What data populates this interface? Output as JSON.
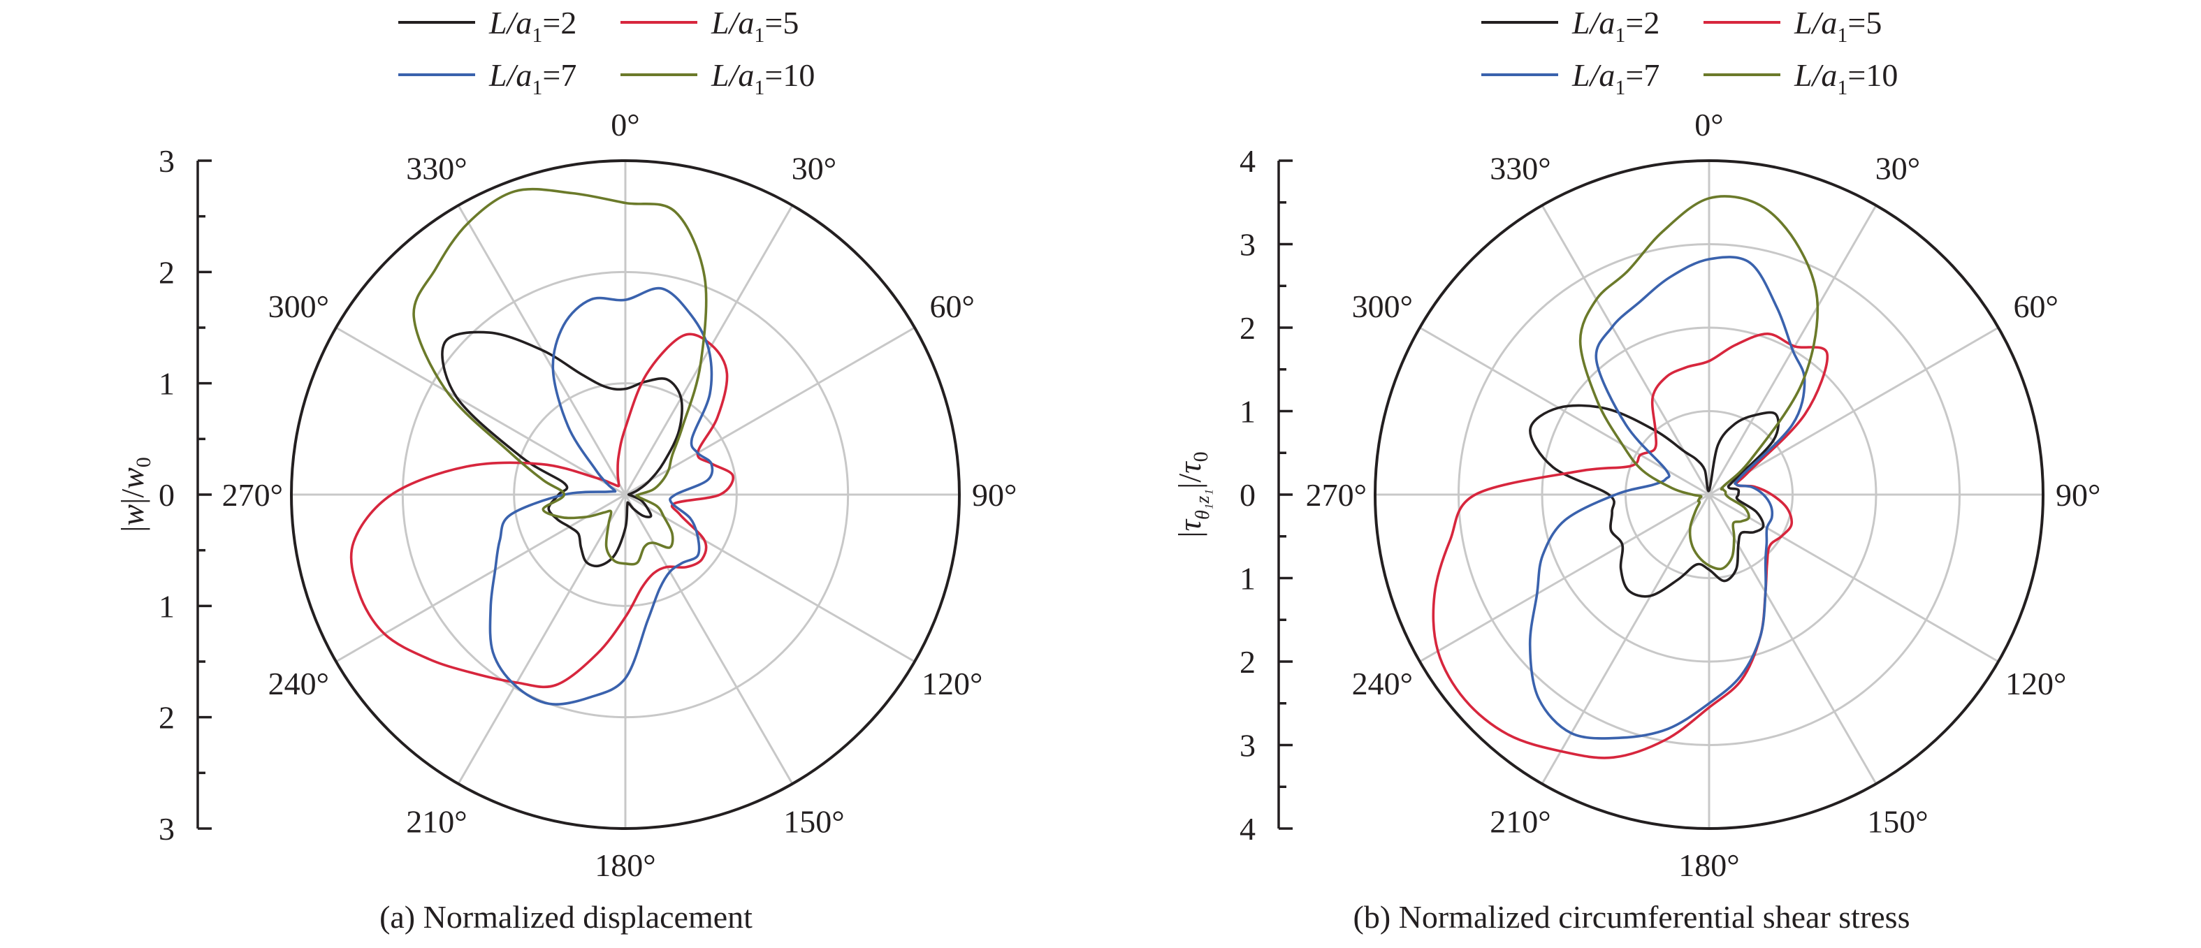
{
  "colors": {
    "L2": "#231f20",
    "L5": "#d7263d",
    "L7": "#3a62ad",
    "L10": "#6b7a2a"
  },
  "chart_data": [
    {
      "type": "polar-line",
      "caption": "(a) Normalized displacement",
      "ylabel": "|w|/w0",
      "rlim": [
        0,
        3
      ],
      "r_ticks": [
        "3",
        "2",
        "1",
        "0",
        "1",
        "2",
        "3"
      ],
      "angle_labels": [
        "0°",
        "30°",
        "60°",
        "90°",
        "120°",
        "150°",
        "180°",
        "210°",
        "240°",
        "270°",
        "300°",
        "330°"
      ],
      "legend": [
        "L/a1=2",
        "L/a1=5",
        "L/a1=7",
        "L/a1=10"
      ],
      "grid": true,
      "series": [
        {
          "name": "L/a1=2",
          "key": "L2",
          "theta": [
            0,
            10,
            20,
            30,
            40,
            50,
            60,
            70,
            80,
            90,
            100,
            110,
            120,
            130,
            140,
            150,
            160,
            170,
            180,
            190,
            200,
            210,
            220,
            230,
            240,
            250,
            260,
            270,
            280,
            290,
            300,
            310,
            320,
            330,
            340,
            350,
            360
          ],
          "r": [
            0.95,
            1.03,
            1.1,
            1.0,
            0.75,
            0.45,
            0.25,
            0.12,
            0.05,
            0.03,
            0.06,
            0.15,
            0.22,
            0.3,
            0.25,
            0.15,
            0.08,
            0.1,
            0.3,
            0.55,
            0.68,
            0.7,
            0.62,
            0.55,
            0.58,
            0.65,
            0.7,
            0.6,
            0.55,
            1.0,
            1.75,
            2.12,
            1.9,
            1.5,
            1.15,
            0.98,
            0.95
          ]
        },
        {
          "name": "L/a1=5",
          "key": "L5",
          "theta": [
            0,
            10,
            20,
            30,
            40,
            50,
            60,
            70,
            80,
            90,
            100,
            110,
            120,
            130,
            140,
            150,
            160,
            170,
            180,
            190,
            200,
            210,
            220,
            230,
            240,
            250,
            260,
            270,
            280,
            290,
            300,
            310,
            320,
            330,
            340,
            350,
            360
          ],
          "r": [
            0.6,
            1.1,
            1.52,
            1.55,
            1.42,
            1.08,
            0.75,
            0.82,
            0.98,
            0.85,
            0.45,
            0.52,
            0.82,
            0.9,
            0.85,
            0.75,
            0.75,
            0.85,
            1.1,
            1.45,
            1.82,
            1.95,
            2.1,
            2.3,
            2.5,
            2.55,
            2.48,
            2.1,
            1.45,
            0.8,
            0.3,
            0.15,
            0.1,
            0.12,
            0.2,
            0.35,
            0.6
          ]
        },
        {
          "name": "L/a1=7",
          "key": "L7",
          "theta": [
            0,
            10,
            20,
            30,
            40,
            50,
            60,
            70,
            80,
            90,
            100,
            110,
            120,
            130,
            140,
            150,
            160,
            170,
            180,
            190,
            200,
            210,
            220,
            230,
            240,
            250,
            260,
            270,
            280,
            290,
            300,
            310,
            320,
            330,
            340,
            350,
            360
          ],
          "r": [
            1.75,
            1.88,
            1.72,
            1.5,
            1.18,
            0.78,
            0.75,
            0.82,
            0.75,
            0.45,
            0.42,
            0.62,
            0.75,
            0.85,
            0.8,
            0.8,
            0.9,
            1.15,
            1.65,
            1.85,
            2.0,
            1.98,
            1.85,
            1.58,
            1.35,
            1.2,
            1.05,
            0.55,
            0.15,
            0.1,
            0.18,
            0.35,
            0.8,
            1.3,
            1.62,
            1.78,
            1.75
          ]
        },
        {
          "name": "L/a1=10",
          "key": "L10",
          "theta": [
            0,
            10,
            20,
            30,
            40,
            50,
            60,
            70,
            80,
            90,
            100,
            110,
            120,
            130,
            140,
            150,
            160,
            170,
            180,
            190,
            200,
            210,
            220,
            230,
            240,
            250,
            260,
            270,
            280,
            290,
            300,
            310,
            320,
            330,
            340,
            350,
            360
          ],
          "r": [
            2.62,
            2.58,
            2.08,
            1.35,
            0.8,
            0.55,
            0.45,
            0.35,
            0.25,
            0.12,
            0.12,
            0.3,
            0.4,
            0.55,
            0.62,
            0.5,
            0.5,
            0.62,
            0.62,
            0.6,
            0.5,
            0.3,
            0.2,
            0.25,
            0.4,
            0.6,
            0.75,
            0.55,
            0.75,
            1.1,
            1.85,
            2.48,
            2.65,
            2.82,
            2.9,
            2.75,
            2.62
          ]
        }
      ]
    },
    {
      "type": "polar-line",
      "caption": "(b) Normalized circumferential shear stress",
      "ylabel": "|τθ1z1|/τ0",
      "rlim": [
        0,
        4
      ],
      "r_ticks": [
        "4",
        "3",
        "2",
        "1",
        "0",
        "1",
        "2",
        "3",
        "4"
      ],
      "angle_labels": [
        "0°",
        "30°",
        "60°",
        "90°",
        "120°",
        "150°",
        "180°",
        "210°",
        "240°",
        "270°",
        "300°",
        "330°"
      ],
      "legend": [
        "L/a1=2",
        "L/a1=5",
        "L/a1=7",
        "L/a1=10"
      ],
      "grid": true,
      "series": [
        {
          "name": "L/a1=2",
          "key": "L2",
          "theta": [
            0,
            10,
            20,
            30,
            40,
            50,
            60,
            70,
            80,
            90,
            100,
            110,
            120,
            130,
            140,
            150,
            160,
            170,
            180,
            190,
            200,
            210,
            220,
            230,
            240,
            250,
            260,
            270,
            280,
            290,
            300,
            310,
            320,
            330,
            340,
            350,
            360
          ],
          "r": [
            0.05,
            0.6,
            0.9,
            1.1,
            1.25,
            1.0,
            0.35,
            0.25,
            0.35,
            0.35,
            0.35,
            0.6,
            0.75,
            0.7,
            0.6,
            0.7,
            0.95,
            1.05,
            0.9,
            0.85,
            1.08,
            1.4,
            1.5,
            1.38,
            1.2,
            1.25,
            1.18,
            1.2,
            1.9,
            2.28,
            2.08,
            1.6,
            1.0,
            0.6,
            0.45,
            0.3,
            0.05
          ]
        },
        {
          "name": "L/a1=5",
          "key": "L5",
          "theta": [
            0,
            10,
            20,
            30,
            40,
            50,
            60,
            70,
            80,
            90,
            100,
            110,
            120,
            130,
            140,
            150,
            160,
            170,
            180,
            190,
            200,
            210,
            220,
            230,
            240,
            250,
            260,
            270,
            280,
            290,
            300,
            310,
            320,
            330,
            340,
            350,
            360
          ],
          "r": [
            1.6,
            1.82,
            2.05,
            2.05,
            2.2,
            1.5,
            0.55,
            0.35,
            0.55,
            0.75,
            0.95,
            1.05,
            1.0,
            0.95,
            1.08,
            1.35,
            1.8,
            2.25,
            2.55,
            2.98,
            3.35,
            3.55,
            3.75,
            3.82,
            3.75,
            3.5,
            3.15,
            2.8,
            1.6,
            1.0,
            0.95,
            0.85,
            1.0,
            1.35,
            1.5,
            1.55,
            1.6
          ]
        },
        {
          "name": "L/a1=7",
          "key": "L7",
          "theta": [
            0,
            10,
            20,
            30,
            40,
            50,
            60,
            70,
            80,
            90,
            100,
            110,
            120,
            130,
            140,
            150,
            160,
            170,
            180,
            190,
            200,
            210,
            220,
            230,
            240,
            250,
            260,
            270,
            280,
            290,
            300,
            310,
            320,
            330,
            340,
            350,
            360
          ],
          "r": [
            2.82,
            2.82,
            2.38,
            2.0,
            1.78,
            1.3,
            0.45,
            0.35,
            0.52,
            0.65,
            0.75,
            0.8,
            0.8,
            0.9,
            1.05,
            1.35,
            1.8,
            2.2,
            2.5,
            2.85,
            3.1,
            3.3,
            3.18,
            2.8,
            2.38,
            2.12,
            1.75,
            1.12,
            0.68,
            0.55,
            0.6,
            1.3,
            2.1,
            2.32,
            2.45,
            2.65,
            2.82
          ]
        },
        {
          "name": "L/a1=10",
          "key": "L10",
          "theta": [
            0,
            10,
            20,
            30,
            40,
            50,
            60,
            70,
            80,
            90,
            100,
            110,
            120,
            130,
            140,
            150,
            160,
            170,
            180,
            190,
            200,
            210,
            220,
            230,
            240,
            250,
            260,
            270,
            280,
            290,
            300,
            310,
            320,
            330,
            340,
            350,
            360
          ],
          "r": [
            3.55,
            3.52,
            3.15,
            2.6,
            1.72,
            0.65,
            0.2,
            0.18,
            0.2,
            0.2,
            0.25,
            0.45,
            0.55,
            0.5,
            0.45,
            0.6,
            0.8,
            0.9,
            0.85,
            0.75,
            0.62,
            0.45,
            0.25,
            0.15,
            0.15,
            0.12,
            0.1,
            0.2,
            0.45,
            0.85,
            1.2,
            1.75,
            2.4,
            2.7,
            2.85,
            3.2,
            3.55
          ]
        }
      ]
    }
  ]
}
